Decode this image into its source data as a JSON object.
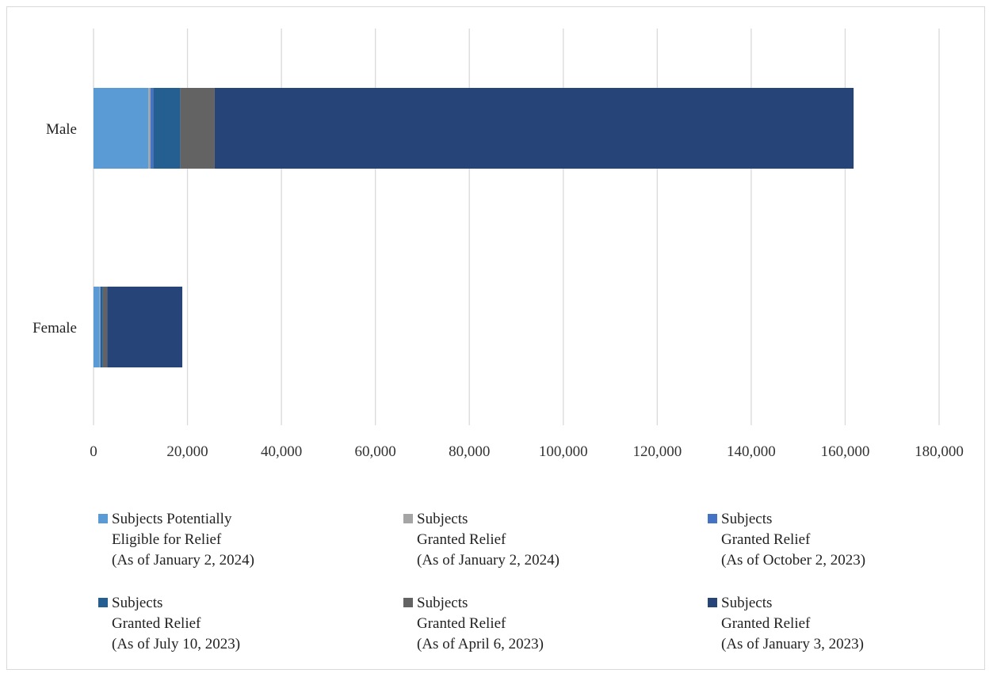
{
  "chart_data": {
    "type": "bar",
    "orientation": "horizontal",
    "stacked": true,
    "categories": [
      "Male",
      "Female"
    ],
    "xlim": [
      0,
      180000
    ],
    "x_ticks": [
      0,
      20000,
      40000,
      60000,
      80000,
      100000,
      120000,
      140000,
      160000,
      180000
    ],
    "x_tick_labels": [
      "0",
      "20,000",
      "40,000",
      "60,000",
      "80,000",
      "100,000",
      "120,000",
      "140,000",
      "160,000",
      "180,000"
    ],
    "grid": "vertical",
    "legend_position": "bottom",
    "series": [
      {
        "name": "Subjects Potentially Eligible for Relief (As of January 2, 2024)",
        "lines": [
          "Subjects Potentially",
          "Eligible for Relief",
          "(As of January 2, 2024)"
        ],
        "color": "#5b9bd5",
        "values": [
          11700,
          1300
        ]
      },
      {
        "name": "Subjects Granted Relief (As of January 2, 2024)",
        "lines": [
          "Subjects",
          "Granted Relief",
          "(As of January 2, 2024)"
        ],
        "color": "#a5a5a5",
        "values": [
          400,
          100
        ]
      },
      {
        "name": "Subjects Granted Relief (As of October 2, 2023)",
        "lines": [
          "Subjects",
          "Granted Relief",
          "(As of October 2, 2023)"
        ],
        "color": "#4472c4",
        "values": [
          600,
          100
        ]
      },
      {
        "name": "Subjects Granted Relief (As of July 10, 2023)",
        "lines": [
          "Subjects",
          "Granted Relief",
          "(As of July 10, 2023)"
        ],
        "color": "#255e91",
        "values": [
          5800,
          500
        ]
      },
      {
        "name": "Subjects Granted Relief (As of April 6, 2023)",
        "lines": [
          "Subjects",
          "Granted Relief",
          "(As of April 6, 2023)"
        ],
        "color": "#636363",
        "values": [
          7300,
          900
        ]
      },
      {
        "name": "Subjects Granted Relief (As of January 3, 2023)",
        "lines": [
          "Subjects",
          "Granted Relief",
          "(As of January 3, 2023)"
        ],
        "color": "#264478",
        "values": [
          136000,
          16000
        ]
      }
    ]
  }
}
